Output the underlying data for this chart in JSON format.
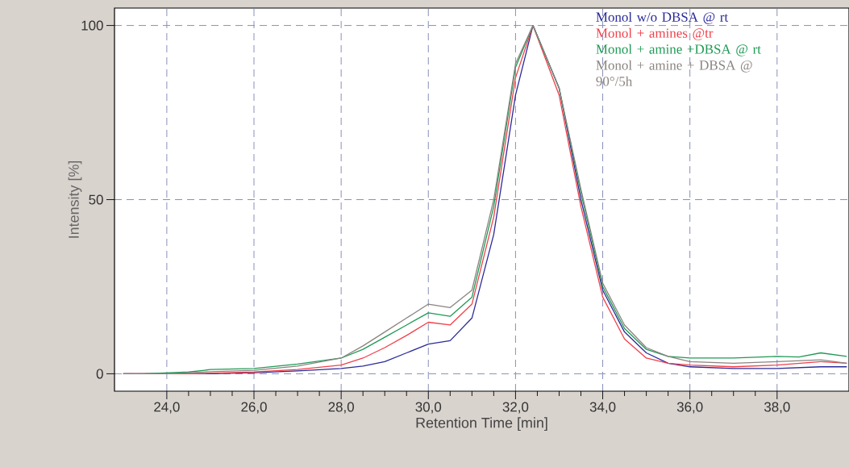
{
  "chart_data": {
    "type": "line",
    "xlabel": "Retention Time [min]",
    "ylabel": "Intensity [%]",
    "xlim": [
      22.8,
      39.65
    ],
    "ylim": [
      -5,
      105
    ],
    "xticks": [
      {
        "value": 24,
        "label": "24,0"
      },
      {
        "value": 26,
        "label": "26,0"
      },
      {
        "value": 28,
        "label": "28,0"
      },
      {
        "value": 30,
        "label": "30,0"
      },
      {
        "value": 32,
        "label": "32,0"
      },
      {
        "value": 34,
        "label": "34,0"
      },
      {
        "value": 36,
        "label": "36,0"
      },
      {
        "value": 38,
        "label": "38,0"
      }
    ],
    "yticks": [
      0,
      50,
      100
    ],
    "grid": true,
    "legend": "top right",
    "series": [
      {
        "name": "Monol w/o DBSA @ rt",
        "color": "#2a2a9a",
        "x": [
          23,
          24,
          25,
          26,
          27,
          28,
          28.5,
          29,
          29.5,
          30,
          30.5,
          31,
          31.5,
          32,
          32.4,
          33,
          33.5,
          34,
          34.5,
          35,
          35.5,
          36,
          37,
          38,
          39,
          39.6
        ],
        "values": [
          0,
          0,
          0,
          0.3,
          0.8,
          1.5,
          2.2,
          3.5,
          6,
          8.5,
          9.5,
          16,
          40,
          80,
          100,
          82,
          50,
          24,
          12,
          6,
          3,
          2,
          1.5,
          1.5,
          2,
          2
        ]
      },
      {
        "name": "Monol + amines @tr",
        "color": "#f0404a",
        "x": [
          23,
          24.5,
          26,
          27,
          28,
          28.5,
          29,
          29.5,
          30,
          30.5,
          31,
          31.5,
          32,
          32.4,
          33,
          33.5,
          34,
          34.5,
          35,
          35.5,
          36,
          37,
          38,
          39,
          39.6
        ],
        "values": [
          0,
          0,
          0.5,
          1.2,
          2.5,
          4.5,
          7.5,
          11,
          14.8,
          14,
          20,
          45,
          85,
          100,
          80,
          48,
          22,
          10,
          4.5,
          3,
          2.5,
          2,
          2.5,
          3.5,
          3
        ]
      },
      {
        "name": "Monol + amine +DBSA @  rt",
        "color": "#1f9a55",
        "x": [
          23.5,
          24.5,
          25,
          26,
          27,
          28,
          28.5,
          29,
          29.5,
          30,
          30.5,
          31,
          31.5,
          32,
          32.4,
          33,
          33.5,
          34,
          34.5,
          35,
          35.5,
          36,
          37,
          38,
          38.5,
          39,
          39.6
        ],
        "values": [
          0,
          0.5,
          1.2,
          1.5,
          2.8,
          4.5,
          7,
          10.5,
          14,
          17.5,
          16.5,
          22,
          48,
          88,
          100,
          82,
          52,
          25,
          13,
          7,
          5,
          4.5,
          4.5,
          5,
          4.8,
          6,
          5
        ]
      },
      {
        "name": "Monol + amine + DBSA @ 90°/5h",
        "color": "#8a8480",
        "x": [
          23,
          24,
          25,
          26,
          27,
          28,
          28.5,
          29,
          29.5,
          30,
          30.5,
          31,
          31.5,
          32,
          32.4,
          33,
          33.5,
          34,
          34.5,
          35,
          35.5,
          36,
          37,
          38,
          39,
          39.6
        ],
        "values": [
          0,
          0,
          0.6,
          1,
          2.2,
          4.5,
          8,
          12,
          16,
          20,
          19,
          24,
          50,
          89,
          100,
          82,
          53,
          26,
          14,
          7.5,
          5,
          3.5,
          3,
          3.5,
          4,
          3
        ]
      }
    ]
  }
}
